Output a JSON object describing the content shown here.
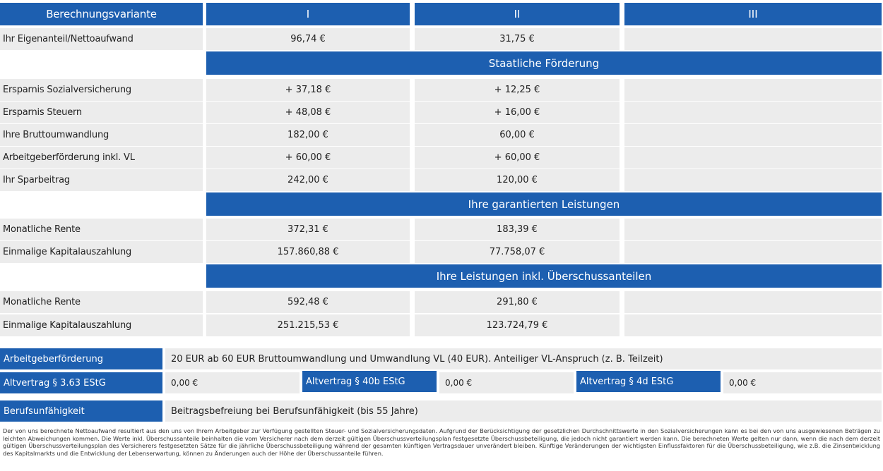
{
  "header": {
    "label": "Berechnungsvariante",
    "variants": [
      "I",
      "II",
      "III"
    ]
  },
  "net": {
    "label": "Ihr Eigenanteil/Nettoaufwand",
    "values": [
      "96,74 €",
      "31,75 €",
      ""
    ]
  },
  "sections": [
    {
      "title": "Staatliche Förderung",
      "rows": [
        {
          "label": "Ersparnis Sozialversicherung",
          "values": [
            "+ 37,18 €",
            "+ 12,25 €",
            ""
          ]
        },
        {
          "label": "Ersparnis Steuern",
          "values": [
            "+ 48,08 €",
            "+ 16,00 €",
            ""
          ]
        },
        {
          "label": "Ihre Bruttoumwandlung",
          "values": [
            "182,00 €",
            "60,00 €",
            ""
          ]
        },
        {
          "label": "Arbeitgeberförderung inkl. VL",
          "values": [
            "+ 60,00 €",
            "+ 60,00 €",
            ""
          ]
        },
        {
          "label": "Ihr Sparbeitrag",
          "values": [
            "242,00 €",
            "120,00 €",
            ""
          ]
        }
      ]
    },
    {
      "title": "Ihre garantierten Leistungen",
      "rows": [
        {
          "label": "Monatliche Rente",
          "values": [
            "372,31 €",
            "183,39 €",
            ""
          ]
        },
        {
          "label": "Einmalige Kapitalauszahlung",
          "values": [
            "157.860,88 €",
            "77.758,07 €",
            ""
          ]
        }
      ]
    },
    {
      "title": "Ihre Leistungen inkl. Überschussanteilen",
      "rows": [
        {
          "label": "Monatliche Rente",
          "values": [
            "592,48 €",
            "291,80 €",
            ""
          ]
        },
        {
          "label": "Einmalige Kapitalauszahlung",
          "values": [
            "251.215,53 €",
            "123.724,79 €",
            ""
          ]
        }
      ]
    }
  ],
  "employer": {
    "label": "Arbeitgeberförderung",
    "text": "20 EUR ab 60 EUR Bruttoumwandlung und Umwandlung VL (40 EUR). Anteiliger VL-Anspruch (z. B. Teilzeit)"
  },
  "old_contracts": [
    {
      "label": "Altvertrag § 3.63 EStG",
      "value": "0,00 €"
    },
    {
      "label": "Altvertrag § 40b EStG",
      "value": "0,00 €"
    },
    {
      "label": "Altvertrag § 4d EStG",
      "value": "0,00 €"
    }
  ],
  "disability": {
    "label": "Berufsunfähigkeit",
    "text": "Beitragsbefreiung bei Berufsunfähigkeit (bis 55 Jahre)"
  },
  "footnote": "Der von uns berechnete Nettoaufwand resultiert aus den uns von Ihrem Arbeitgeber zur Verfügung gestellten Steuer- und Sozialversicherungsdaten. Aufgrund der Berücksichtigung der gesetzlichen Durchschnittswerte in den Sozialversicherungen kann es bei den von uns ausgewiesenen Beträgen zu leichten Abweichungen kommen. Die Werte inkl. Überschussanteile beinhalten die vom Versicherer nach dem derzeit gültigen Überschussverteilungsplan festgesetzte Überschussbeteiligung, die jedoch nicht garantiert werden kann. Die berechneten Werte gelten nur dann, wenn die nach dem derzeit gültigen Überschussverteilungsplan des Versicherers festgesetzten Sätze für die jährliche Überschussbeteiligung während der gesamten künftigen Vertragsdauer unverändert bleiben. Künftige Veränderungen der wichtigsten Einflussfaktoren für die Überschussbeteiligung, wie z.B. die Zinsentwicklung des Kapitalmarkts und die Entwicklung der Lebenserwartung, können zu Änderungen auch der Höhe der Überschussanteile führen."
}
